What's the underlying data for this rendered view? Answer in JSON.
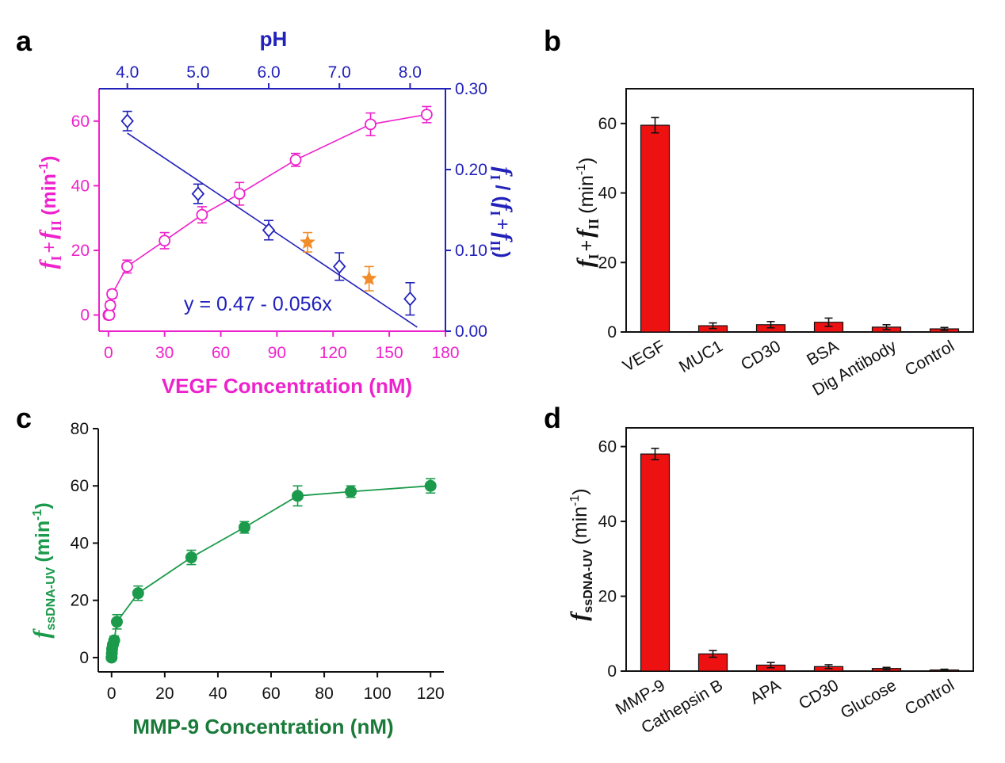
{
  "chart_data": [
    {
      "type": "scatter",
      "panel": "a",
      "xlabel": "VEGF Concentration (nM)",
      "x_top_label": "pH",
      "xlim": [
        -5,
        180
      ],
      "x_ticks": [
        "0",
        "30",
        "60",
        "90",
        "120",
        "150",
        "180"
      ],
      "x_top_lim": [
        3.6,
        8.5
      ],
      "x_top_ticks": [
        "4.0",
        "5.0",
        "6.0",
        "7.0",
        "8.0"
      ],
      "ylim": [
        -5,
        70
      ],
      "y_ticks": [
        "0",
        "20",
        "40",
        "60"
      ],
      "y2lim": [
        0,
        0.3
      ],
      "y2_ticks": [
        "0.00",
        "0.10",
        "0.20",
        "0.30"
      ],
      "ylabel_parts": {
        "f1": "f",
        "s1": "I",
        "plus": "+",
        "f2": "f",
        "s2": "II",
        "unit": "(min",
        "sup": "-1",
        "close": ")"
      },
      "y2label_parts": {
        "f1": "f",
        "s1": "I",
        "mid": "/ (",
        "f2": "f",
        "s2": "I",
        "plus": "+",
        "f3": "f",
        "s3": "II",
        "close": ")"
      },
      "equation": "y = 0.47 - 0.056x",
      "colors": {
        "vegf": "#ee22cc",
        "ph": "#2222bb",
        "star": "#f28c28"
      },
      "series": [
        {
          "axis": "bottom-left",
          "marker": "open-circle",
          "x": [
            0,
            0.5,
            1,
            2,
            10,
            30,
            50,
            70,
            100,
            140,
            170
          ],
          "y": [
            0,
            0,
            3,
            6.5,
            15,
            23,
            31,
            37.5,
            48,
            59,
            62
          ],
          "err": [
            1.2,
            1.2,
            1.2,
            1.2,
            2,
            2.5,
            2.5,
            3.5,
            2,
            3.5,
            2.5
          ]
        },
        {
          "axis": "top-right",
          "marker": "open-diamond",
          "x": [
            4.0,
            5.0,
            6.0,
            7.0,
            8.0
          ],
          "y": [
            0.26,
            0.17,
            0.125,
            0.08,
            0.04
          ],
          "err": [
            0.012,
            0.012,
            0.012,
            0.017,
            0.02
          ]
        },
        {
          "axis": "top-right",
          "marker": "star",
          "x": [
            6.55,
            7.42
          ],
          "y": [
            0.11,
            0.065
          ],
          "err": [
            0.012,
            0.015
          ]
        }
      ],
      "fit_line": {
        "x": [
          4.0,
          8.1
        ],
        "y": [
          0.245,
          0.005
        ]
      }
    },
    {
      "type": "bar",
      "panel": "b",
      "categories": [
        "VEGF",
        "MUC1",
        "CD30",
        "BSA",
        "Dig Antibody",
        "Control"
      ],
      "values": [
        59.5,
        1.8,
        2.1,
        2.8,
        1.4,
        0.9
      ],
      "err": [
        2.2,
        0.8,
        0.9,
        1.2,
        0.7,
        0.4
      ],
      "ylim": [
        0,
        70
      ],
      "y_ticks": [
        "0",
        "20",
        "40",
        "60"
      ],
      "ylabel_parts": {
        "f1": "f",
        "s1": "I",
        "plus": "+",
        "f2": "f",
        "s2": "II",
        "unit": "(min",
        "sup": "-1",
        "close": ")"
      },
      "bar_color": "#ee1111"
    },
    {
      "type": "line",
      "panel": "c",
      "xlabel": "MMP-9 Concentration (nM)",
      "xlim": [
        -5,
        125
      ],
      "x_ticks": [
        "0",
        "20",
        "40",
        "60",
        "80",
        "100",
        "120"
      ],
      "ylim": [
        -5,
        80
      ],
      "y_ticks": [
        "0",
        "20",
        "40",
        "60",
        "80"
      ],
      "ylabel_parts": {
        "f1": "f",
        "sub": "ssDNA-UV",
        "unit": "(min",
        "sup": "-1",
        "close": ")"
      },
      "color": "#1a9a4a",
      "series": [
        {
          "marker": "filled-circle",
          "x": [
            0,
            0.1,
            0.2,
            0.5,
            1,
            2,
            10,
            30,
            50,
            70,
            90,
            120
          ],
          "y": [
            0,
            1.5,
            3,
            4.5,
            6,
            12.5,
            22.5,
            35,
            45.5,
            56.5,
            58,
            60
          ],
          "err": [
            1,
            1,
            1,
            1,
            1.5,
            2.5,
            2.5,
            2.5,
            2,
            3.5,
            2,
            2.5
          ]
        }
      ]
    },
    {
      "type": "bar",
      "panel": "d",
      "categories": [
        "MMP-9",
        "Cathepsin B",
        "APA",
        "CD30",
        "Glucose",
        "Control"
      ],
      "values": [
        58,
        4.6,
        1.6,
        1.2,
        0.7,
        0.3
      ],
      "err": [
        1.5,
        0.9,
        0.7,
        0.5,
        0.3,
        0.2
      ],
      "ylim": [
        0,
        65
      ],
      "y_ticks": [
        "0",
        "20",
        "40",
        "60"
      ],
      "ylabel_parts": {
        "f1": "f",
        "sub": "ssDNA-UV",
        "unit": "(min",
        "sup": "-1",
        "close": ")"
      },
      "bar_color": "#ee1111"
    }
  ],
  "panel_labels": [
    "a",
    "b",
    "c",
    "d"
  ]
}
